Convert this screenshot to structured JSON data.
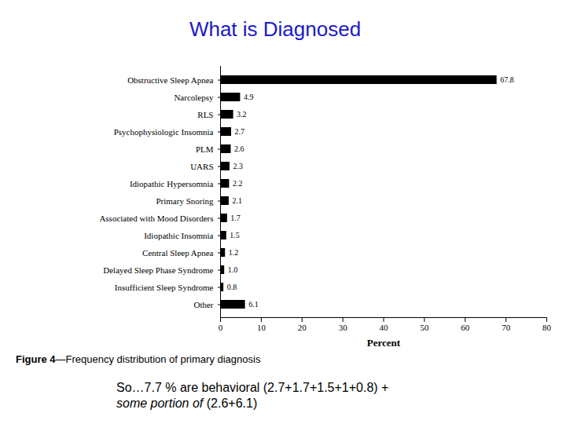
{
  "chart_data": {
    "type": "bar",
    "title": "What is Diagnosed",
    "caption": "Figure 4—Frequency distribution of primary diagnosis",
    "annotations": [
      "So…7.7 % are behavioral (2.7+1.7+1.5+1+0.8) +",
      "some portion of (2.6+6.1)"
    ],
    "orientation": "horizontal",
    "categories": [
      "Obstructive Sleep Apnea",
      "Narcolepsy",
      "RLS",
      "Psychophysiologic Insomnia",
      "PLM",
      "UARS",
      "Idiopathic Hypersomnia",
      "Primary Snoring",
      "Associated with Mood Disorders",
      "Idiopathic Insomnia",
      "Central Sleep Apnea",
      "Delayed Sleep Phase Syndrome",
      "Insufficient Sleep Syndrome",
      "Other"
    ],
    "values": [
      67.8,
      4.9,
      3.2,
      2.7,
      2.6,
      2.3,
      2.2,
      2.1,
      1.7,
      1.5,
      1.2,
      1.0,
      0.8,
      6.1
    ],
    "value_labels": [
      "67.8",
      "4.9",
      "3.2",
      "2.7",
      "2.6",
      "2.3",
      "2.2",
      "2.1",
      "1.7",
      "1.5",
      "1.2",
      "1.0",
      "0.8",
      "6.1"
    ],
    "data_labels": true,
    "color": "#000000",
    "x_label": "Percent",
    "xlim": [
      0,
      80
    ],
    "xticks": [
      0,
      10,
      20,
      30,
      40,
      50,
      60,
      70,
      80
    ],
    "grid": false
  }
}
